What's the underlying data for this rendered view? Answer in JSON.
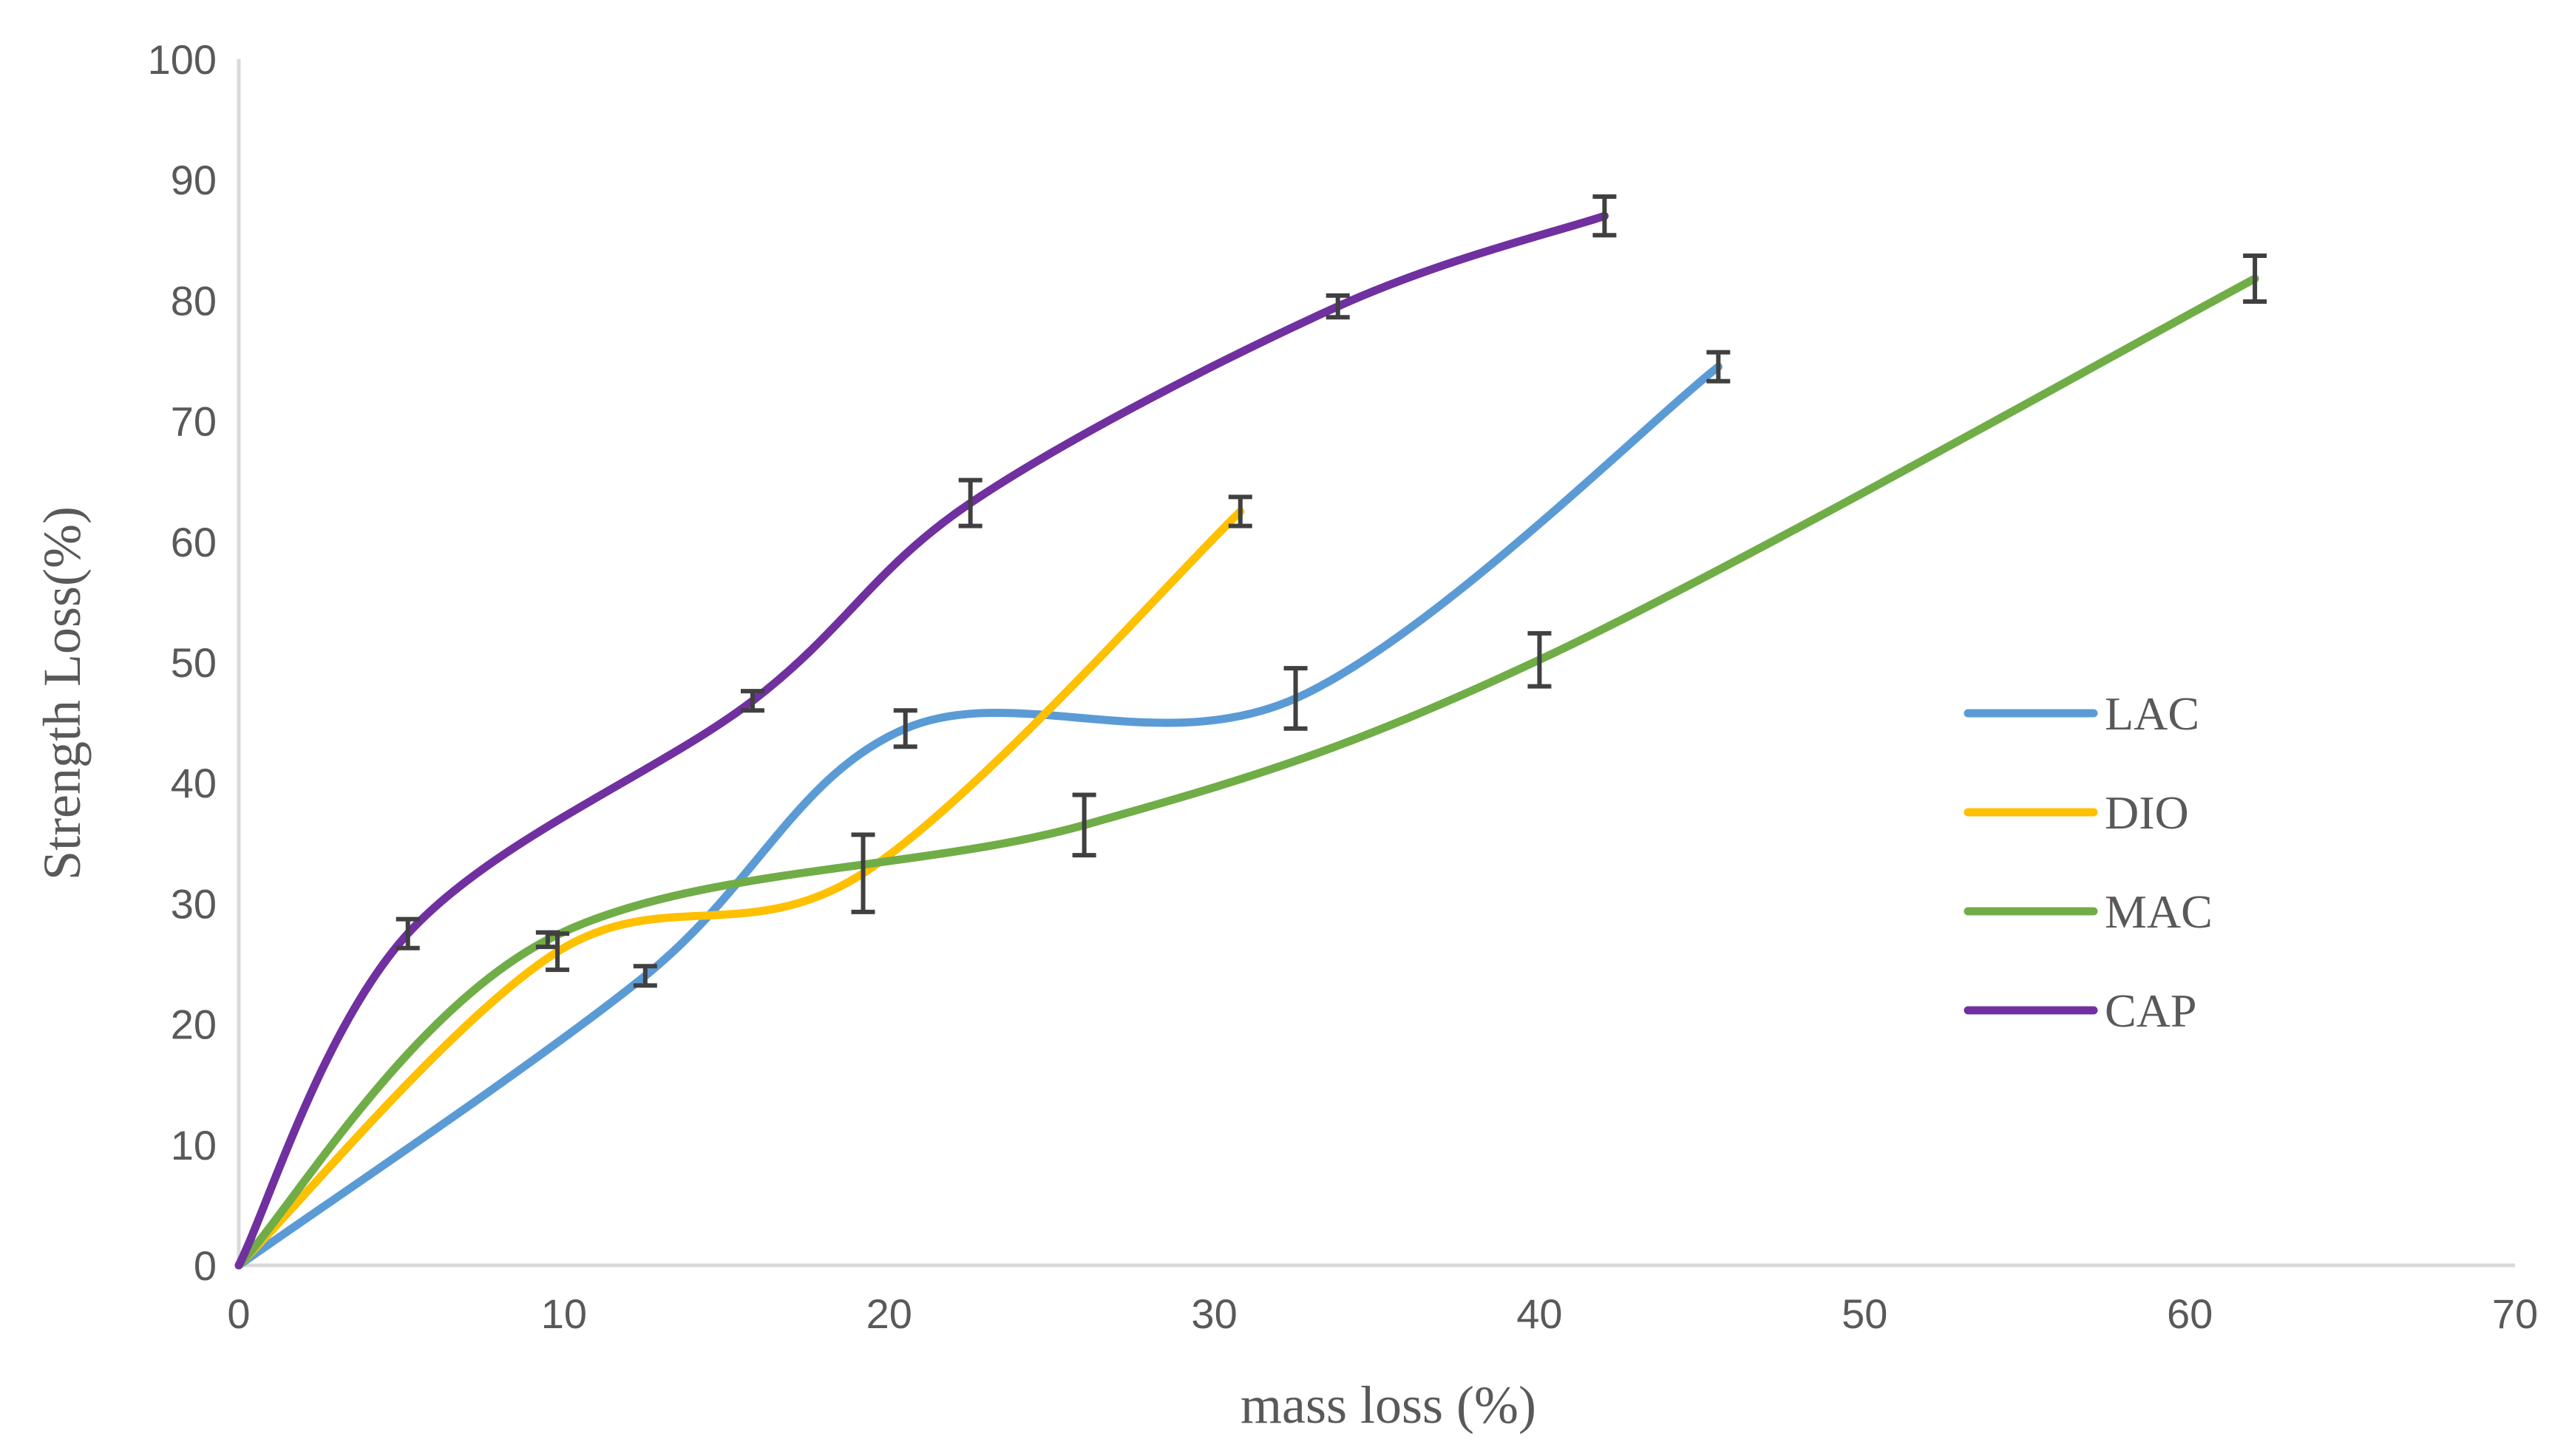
{
  "chart_data": {
    "type": "line",
    "title": "",
    "xlabel": "mass loss (%)",
    "ylabel": "Strength Loss(%)",
    "xlim": [
      0,
      70
    ],
    "ylim": [
      0,
      100
    ],
    "xticks": [
      0,
      10,
      20,
      30,
      40,
      50,
      60,
      70
    ],
    "yticks": [
      0,
      10,
      20,
      30,
      40,
      50,
      60,
      70,
      80,
      90,
      100
    ],
    "grid": false,
    "legend_position": "right",
    "series": [
      {
        "name": "LAC",
        "color": "#5B9BD5",
        "points": [
          [
            0,
            0
          ],
          [
            12.5,
            24
          ],
          [
            20.5,
            44.5
          ],
          [
            32.5,
            47
          ],
          [
            45.5,
            74.5
          ]
        ],
        "error": [
          0,
          0.8,
          1.5,
          2.5,
          1.2
        ]
      },
      {
        "name": "DIO",
        "color": "#FFC000",
        "points": [
          [
            0,
            0
          ],
          [
            9.8,
            26
          ],
          [
            19.2,
            32.5
          ],
          [
            30.8,
            62.5
          ]
        ],
        "error": [
          0,
          1.5,
          3.2,
          1.2
        ]
      },
      {
        "name": "MAC",
        "color": "#70AD47",
        "points": [
          [
            0,
            0
          ],
          [
            9.5,
            27
          ],
          [
            26,
            36.5
          ],
          [
            40,
            50.2
          ],
          [
            62,
            81.8
          ]
        ],
        "error": [
          0,
          0.6,
          2.5,
          2.2,
          1.9
        ]
      },
      {
        "name": "CAP",
        "color": "#7030A0",
        "points": [
          [
            0,
            0
          ],
          [
            5.2,
            27.5
          ],
          [
            15.8,
            46.8
          ],
          [
            22.5,
            63.2
          ],
          [
            33.8,
            79.5
          ],
          [
            42,
            87
          ]
        ],
        "error": [
          0,
          1.2,
          0.8,
          1.9,
          0.9,
          1.6
        ]
      }
    ]
  }
}
